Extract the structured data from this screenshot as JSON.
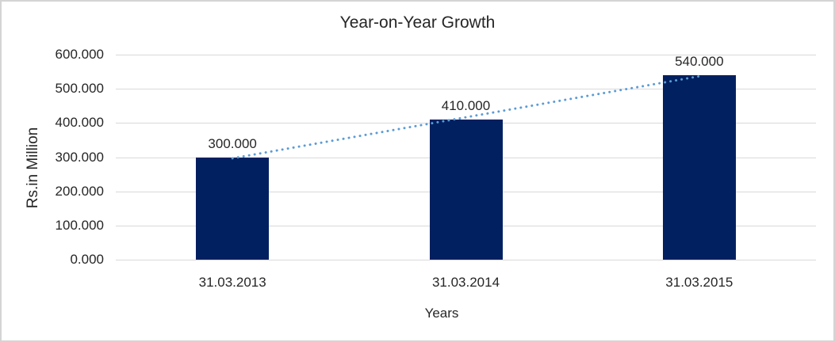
{
  "chart_data": {
    "type": "bar",
    "title": "Year-on-Year Growth",
    "xlabel": "Years",
    "ylabel": "Rs.in Million",
    "categories": [
      "31.03.2013",
      "31.03.2014",
      "31.03.2015"
    ],
    "values": [
      300,
      410,
      540
    ],
    "value_labels": [
      "300.000",
      "410.000",
      "540.000"
    ],
    "yticks": [
      0,
      100,
      200,
      300,
      400,
      500,
      600
    ],
    "ytick_labels": [
      "0.000",
      "100.000",
      "200.000",
      "300.000",
      "400.000",
      "500.000",
      "600.000"
    ],
    "ylim": [
      0,
      600
    ],
    "grid": true,
    "legend": false,
    "bar_color": "#002060",
    "gridline_color": "#d9d9d9",
    "text_color": "#262626",
    "frame_border_color": "#d4d4d4",
    "trendline": {
      "type": "linear",
      "style": "dotted",
      "color": "#5b9bd5",
      "start_value": 296.7,
      "end_value": 536.7
    }
  }
}
